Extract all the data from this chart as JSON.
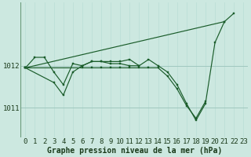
{
  "title": "Graphe pression niveau de la mer (hPa)",
  "background_color": "#cce8e0",
  "plot_bg_color": "#cce8e0",
  "grid_color_v": "#b8ddd5",
  "grid_color_h": "#a0c8be",
  "line_color": "#1a5c2a",
  "hours": [
    0,
    1,
    2,
    3,
    4,
    5,
    6,
    7,
    8,
    9,
    10,
    11,
    12,
    13,
    14,
    15,
    16,
    17,
    18,
    19,
    20,
    21,
    22,
    23
  ],
  "series": [
    {
      "points": [
        [
          0,
          1011.95
        ],
        [
          1,
          1012.2
        ],
        [
          2,
          1012.2
        ],
        [
          3,
          1011.85
        ],
        [
          4,
          1011.55
        ],
        [
          5,
          1012.05
        ],
        [
          6,
          1012.0
        ],
        [
          7,
          1012.1
        ],
        [
          8,
          1012.1
        ],
        [
          9,
          1012.1
        ],
        [
          10,
          1012.1
        ],
        [
          11,
          1012.15
        ],
        [
          12,
          1012.0
        ],
        [
          13,
          1012.15
        ],
        [
          14,
          1012.0
        ],
        [
          15,
          1011.85
        ],
        [
          16,
          1011.55
        ],
        [
          17,
          1011.1
        ],
        [
          18,
          1010.7
        ],
        [
          19,
          1011.1
        ],
        [
          20,
          1012.55
        ],
        [
          21,
          1013.05
        ]
      ]
    },
    {
      "points": [
        [
          0,
          1011.95
        ],
        [
          3,
          1011.6
        ],
        [
          4,
          1011.3
        ],
        [
          5,
          1011.85
        ],
        [
          6,
          1012.0
        ],
        [
          7,
          1012.1
        ],
        [
          8,
          1012.1
        ],
        [
          9,
          1012.05
        ],
        [
          10,
          1012.05
        ],
        [
          11,
          1012.0
        ],
        [
          12,
          1012.0
        ]
      ]
    },
    {
      "points": [
        [
          0,
          1011.95
        ],
        [
          6,
          1011.95
        ],
        [
          7,
          1011.95
        ],
        [
          8,
          1011.95
        ],
        [
          9,
          1011.95
        ],
        [
          10,
          1011.95
        ],
        [
          11,
          1011.95
        ],
        [
          12,
          1011.95
        ],
        [
          13,
          1011.95
        ],
        [
          14,
          1011.95
        ],
        [
          15,
          1011.75
        ],
        [
          16,
          1011.45
        ],
        [
          17,
          1011.05
        ],
        [
          18,
          1010.75
        ],
        [
          19,
          1011.15
        ]
      ]
    },
    {
      "points": [
        [
          0,
          1011.95
        ],
        [
          21,
          1013.05
        ],
        [
          22,
          1013.25
        ]
      ]
    }
  ],
  "ylim": [
    1010.3,
    1013.5
  ],
  "yticks": [
    1011,
    1012
  ],
  "tick_fontsize": 6.5,
  "title_fontsize": 7.0
}
